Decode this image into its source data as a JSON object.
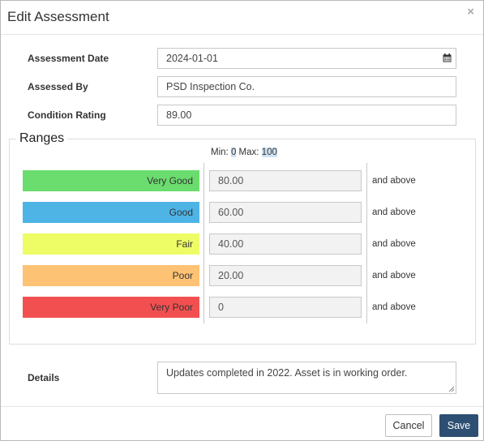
{
  "dialog": {
    "title": "Edit Assessment",
    "close_glyph": "×"
  },
  "form": {
    "assessment_date": {
      "label": "Assessment Date",
      "value": "2024-01-01"
    },
    "assessed_by": {
      "label": "Assessed By",
      "value": "PSD Inspection Co."
    },
    "condition_rating": {
      "label": "Condition Rating",
      "value": "89.00"
    }
  },
  "ranges": {
    "legend": "Ranges",
    "min_label": "Min:",
    "min_value": "0",
    "max_label": "Max:",
    "max_value": "100",
    "items": [
      {
        "label": "Very Good",
        "value": "80.00",
        "suffix": "and above",
        "color": "#6bdc6e"
      },
      {
        "label": "Good",
        "value": "60.00",
        "suffix": "and above",
        "color": "#4eb4e6"
      },
      {
        "label": "Fair",
        "value": "40.00",
        "suffix": "and above",
        "color": "#eefc65"
      },
      {
        "label": "Poor",
        "value": "20.00",
        "suffix": "and above",
        "color": "#fdc274"
      },
      {
        "label": "Very Poor",
        "value": "0",
        "suffix": "and above",
        "color": "#f25050"
      }
    ]
  },
  "details": {
    "label": "Details",
    "value": "Updates completed in 2022.  Asset is in working order."
  },
  "footer": {
    "cancel_label": "Cancel",
    "save_label": "Save"
  }
}
